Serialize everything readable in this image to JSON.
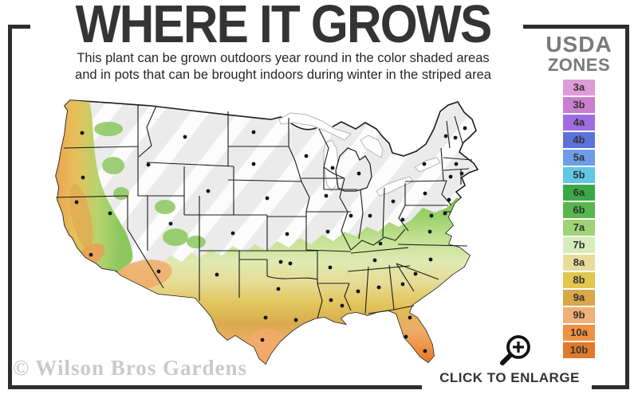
{
  "title": "WHERE IT GROWS",
  "subtitle": {
    "line1": "This plant can be grown outdoors year round in the color shaded areas",
    "line2": "and in pots that can be brought indoors during winter in the striped area"
  },
  "legend": {
    "title_line1": "USDA",
    "title_line2": "ZONES",
    "zones": [
      {
        "label": "3a",
        "color": "#de9cd8"
      },
      {
        "label": "3b",
        "color": "#cb7ecf"
      },
      {
        "label": "4a",
        "color": "#a06ce2"
      },
      {
        "label": "4b",
        "color": "#5a73da"
      },
      {
        "label": "5a",
        "color": "#6d9de8"
      },
      {
        "label": "5b",
        "color": "#5fc8e6"
      },
      {
        "label": "6a",
        "color": "#3aa846"
      },
      {
        "label": "6b",
        "color": "#57b64c"
      },
      {
        "label": "7a",
        "color": "#a0d377"
      },
      {
        "label": "7b",
        "color": "#d7ecba"
      },
      {
        "label": "8a",
        "color": "#e9dc9b"
      },
      {
        "label": "8b",
        "color": "#e2c74f"
      },
      {
        "label": "9a",
        "color": "#d8a849"
      },
      {
        "label": "9b",
        "color": "#f1b077"
      },
      {
        "label": "10a",
        "color": "#ef9143"
      },
      {
        "label": "10b",
        "color": "#e2792b"
      }
    ]
  },
  "map": {
    "striped_area_color": "#ebebeb",
    "stripe_highlight_color": "#fcfcfc",
    "state_border_color": "#1b1b1b",
    "city_dot_color": "#141414"
  },
  "footer": {
    "watermark": "© Wilson Bros Gardens",
    "enlarge_label": "CLICK TO ENLARGE"
  }
}
